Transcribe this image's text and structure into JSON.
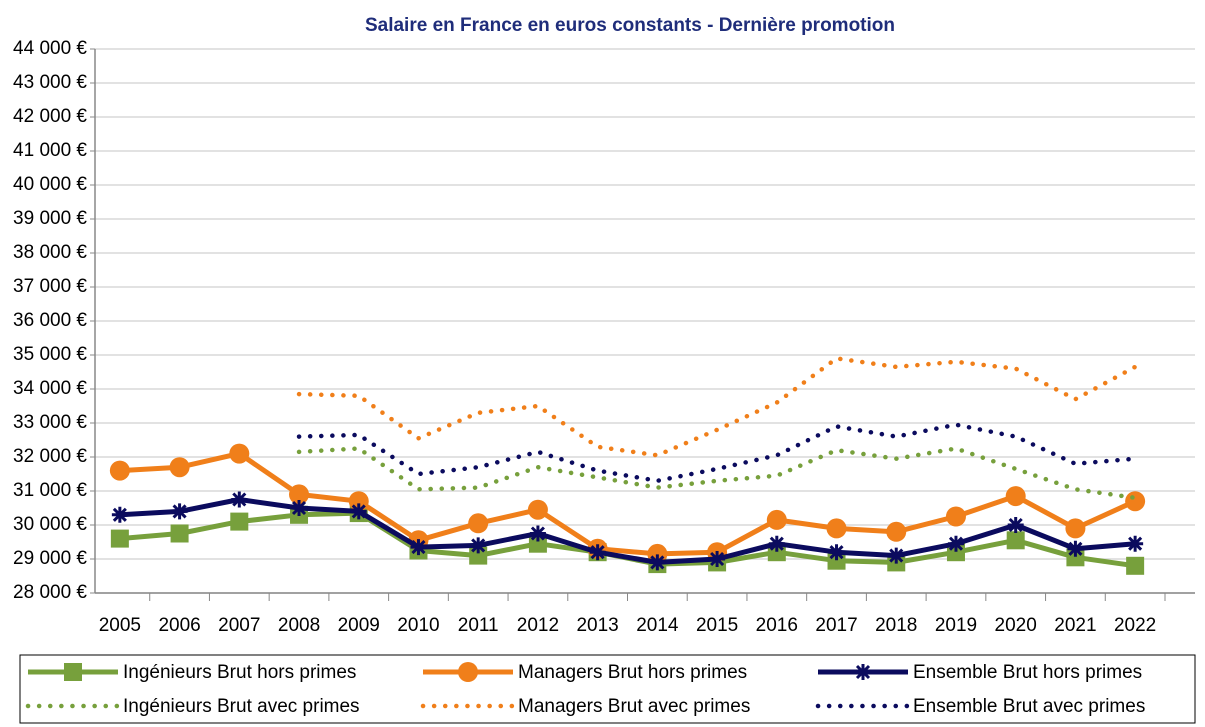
{
  "chart_data": {
    "type": "line",
    "title": "Salaire en France en euros constants - Dernière promotion",
    "categories": [
      "2005",
      "2006",
      "2007",
      "2008",
      "2009",
      "2010",
      "2011",
      "2012",
      "2013",
      "2014",
      "2015",
      "2016",
      "2017",
      "2018",
      "2019",
      "2020",
      "2021",
      "2022"
    ],
    "series": [
      {
        "name": "Ingénieurs Brut hors primes",
        "color": "#77a03c",
        "marker": "square",
        "dash": "solid",
        "values": [
          29600,
          29750,
          30100,
          30300,
          30350,
          29250,
          29100,
          29450,
          29200,
          28850,
          28900,
          29200,
          28950,
          28900,
          29200,
          29550,
          29050,
          28800
        ]
      },
      {
        "name": "Managers Brut hors primes",
        "color": "#f07f1a",
        "marker": "circle",
        "dash": "solid",
        "values": [
          31600,
          31700,
          32100,
          30900,
          30700,
          29550,
          30050,
          30450,
          29300,
          29150,
          29200,
          30150,
          29900,
          29800,
          30250,
          30850,
          29900,
          30700
        ]
      },
      {
        "name": "Ensemble Brut hors primes",
        "color": "#0b0b5e",
        "marker": "star",
        "dash": "solid",
        "values": [
          30300,
          30400,
          30750,
          30500,
          30400,
          29350,
          29400,
          29750,
          29200,
          28900,
          29000,
          29450,
          29200,
          29100,
          29450,
          30000,
          29300,
          29450
        ]
      },
      {
        "name": "Ingénieurs Brut avec primes",
        "color": "#77a03c",
        "marker": "none",
        "dash": "dotted",
        "values": [
          null,
          null,
          null,
          32150,
          32250,
          31050,
          31100,
          31700,
          31400,
          31100,
          31300,
          31450,
          32200,
          31950,
          32250,
          31650,
          31050,
          30800
        ]
      },
      {
        "name": "Managers Brut avec primes",
        "color": "#f07f1a",
        "marker": "none",
        "dash": "dotted",
        "values": [
          null,
          null,
          null,
          33850,
          33800,
          32550,
          33300,
          33500,
          32300,
          32050,
          32800,
          33600,
          34900,
          34650,
          34800,
          34600,
          33700,
          34650
        ]
      },
      {
        "name": "Ensemble Brut avec primes",
        "color": "#0b0b5e",
        "marker": "none",
        "dash": "dotted",
        "values": [
          null,
          null,
          null,
          32600,
          32650,
          31500,
          31700,
          32150,
          31600,
          31300,
          31650,
          32050,
          32900,
          32600,
          32950,
          32600,
          31800,
          31950
        ]
      }
    ],
    "ylim": [
      28000,
      44000
    ],
    "yticks": [
      {
        "value": 28000,
        "label": "28 000 €"
      },
      {
        "value": 29000,
        "label": "29 000 €"
      },
      {
        "value": 30000,
        "label": "30 000 €"
      },
      {
        "value": 31000,
        "label": "31 000 €"
      },
      {
        "value": 32000,
        "label": "32 000 €"
      },
      {
        "value": 33000,
        "label": "33 000 €"
      },
      {
        "value": 34000,
        "label": "34 000 €"
      },
      {
        "value": 35000,
        "label": "35 000 €"
      },
      {
        "value": 36000,
        "label": "36 000 €"
      },
      {
        "value": 37000,
        "label": "37 000 €"
      },
      {
        "value": 38000,
        "label": "38 000 €"
      },
      {
        "value": 39000,
        "label": "39 000 €"
      },
      {
        "value": 40000,
        "label": "40 000 €"
      },
      {
        "value": 41000,
        "label": "41 000 €"
      },
      {
        "value": 42000,
        "label": "42 000 €"
      },
      {
        "value": 43000,
        "label": "43 000 €"
      },
      {
        "value": 44000,
        "label": "44 000 €"
      }
    ],
    "grid": true,
    "legend": "bottom"
  }
}
